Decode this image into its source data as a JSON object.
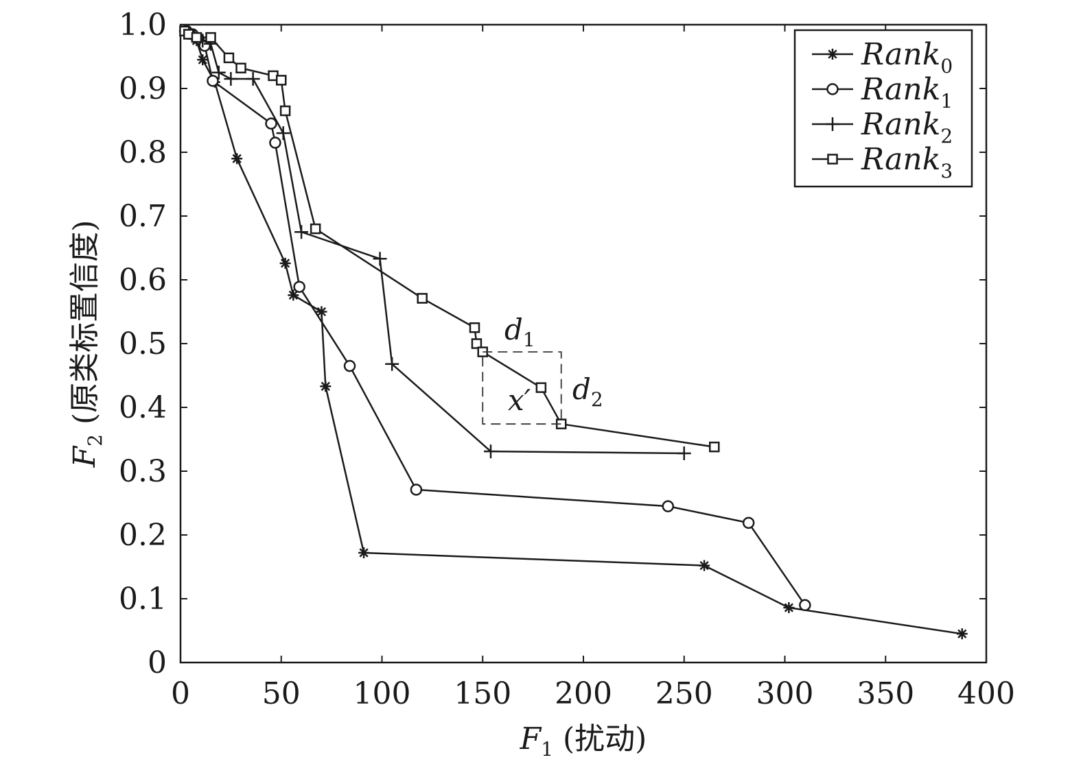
{
  "chart_data": {
    "type": "line",
    "title": "",
    "xlabel": {
      "var": "F",
      "sub": "1",
      "rest": " (扰动)"
    },
    "ylabel": {
      "var": "F",
      "sub": "2",
      "rest": " (原类标置信度)"
    },
    "xlim": [
      0,
      400
    ],
    "ylim": [
      0,
      1.0
    ],
    "xticks": [
      "0",
      "50",
      "100",
      "150",
      "200",
      "250",
      "300",
      "350",
      "400"
    ],
    "yticks": [
      "0",
      "0.1",
      "0.2",
      "0.3",
      "0.4",
      "0.5",
      "0.6",
      "0.7",
      "0.8",
      "0.9",
      "1.0"
    ],
    "grid": false,
    "legend_position": "top-right",
    "series": [
      {
        "name": "Rank",
        "sub": "0",
        "marker": "star",
        "points": [
          [
            2,
            0.99
          ],
          [
            4,
            0.985
          ],
          [
            8,
            0.975
          ],
          [
            11,
            0.945
          ],
          [
            17,
            0.91
          ],
          [
            28,
            0.79
          ],
          [
            52,
            0.626
          ],
          [
            56,
            0.576
          ],
          [
            70,
            0.55
          ],
          [
            72,
            0.433
          ],
          [
            91,
            0.172
          ],
          [
            260,
            0.152
          ],
          [
            302,
            0.086
          ],
          [
            388,
            0.045
          ]
        ]
      },
      {
        "name": "Rank",
        "sub": "1",
        "marker": "circle",
        "points": [
          [
            3,
            0.99
          ],
          [
            6,
            0.985
          ],
          [
            9,
            0.978
          ],
          [
            12,
            0.967
          ],
          [
            16,
            0.912
          ],
          [
            45,
            0.845
          ],
          [
            47,
            0.815
          ],
          [
            59,
            0.589
          ],
          [
            84,
            0.465
          ],
          [
            117,
            0.271
          ],
          [
            242,
            0.245
          ],
          [
            282,
            0.219
          ],
          [
            310,
            0.09
          ]
        ]
      },
      {
        "name": "Rank",
        "sub": "2",
        "marker": "plus",
        "points": [
          [
            3,
            0.99
          ],
          [
            7,
            0.982
          ],
          [
            11,
            0.975
          ],
          [
            15,
            0.97
          ],
          [
            19,
            0.925
          ],
          [
            25,
            0.915
          ],
          [
            36,
            0.915
          ],
          [
            51,
            0.83
          ],
          [
            60,
            0.675
          ],
          [
            99,
            0.633
          ],
          [
            105,
            0.468
          ],
          [
            154,
            0.331
          ],
          [
            250,
            0.328
          ]
        ]
      },
      {
        "name": "Rank",
        "sub": "3",
        "marker": "square",
        "points": [
          [
            2,
            0.99
          ],
          [
            4,
            0.985
          ],
          [
            8,
            0.98
          ],
          [
            15,
            0.98
          ],
          [
            24,
            0.948
          ],
          [
            30,
            0.932
          ],
          [
            46,
            0.92
          ],
          [
            50,
            0.913
          ],
          [
            52,
            0.865
          ],
          [
            67,
            0.68
          ],
          [
            120,
            0.571
          ],
          [
            146,
            0.525
          ],
          [
            147,
            0.5
          ],
          [
            150,
            0.487
          ],
          [
            179,
            0.431
          ],
          [
            189,
            0.374
          ],
          [
            265,
            0.338
          ]
        ]
      }
    ],
    "annotations": {
      "d1": {
        "var": "d",
        "sub": "1"
      },
      "d2": {
        "var": "d",
        "sub": "2"
      },
      "xprime": "x′"
    },
    "box": {
      "x0": 150,
      "x1": 189,
      "y0": 0.374,
      "y1": 0.487
    }
  }
}
